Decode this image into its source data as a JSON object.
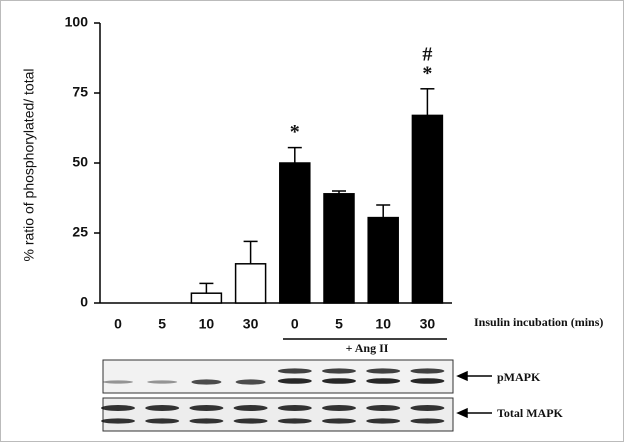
{
  "chart_data": {
    "type": "bar",
    "categories": [
      "0",
      "5",
      "10",
      "30",
      "0",
      "5",
      "10",
      "30"
    ],
    "values": [
      0,
      0,
      3.5,
      14,
      50,
      39,
      30.5,
      67
    ],
    "errors": [
      null,
      null,
      3.5,
      8,
      5.5,
      1,
      4.5,
      9.5
    ],
    "colors": [
      "#ffffff",
      "#ffffff",
      "#ffffff",
      "#ffffff",
      "#000000",
      "#000000",
      "#000000",
      "#000000"
    ],
    "annotations": [
      null,
      null,
      null,
      null,
      [
        "*"
      ],
      null,
      null,
      [
        "*",
        "#"
      ]
    ],
    "ylabel": "% ratio of phosphorylated/ total",
    "xlabel": "Insulin incubation (mins)",
    "group_label": "+ Ang II",
    "blot_labels": [
      "pMAPK",
      "Total MAPK"
    ],
    "ylim": [
      0,
      100
    ],
    "yticks": [
      0,
      25,
      50,
      75,
      100
    ]
  }
}
